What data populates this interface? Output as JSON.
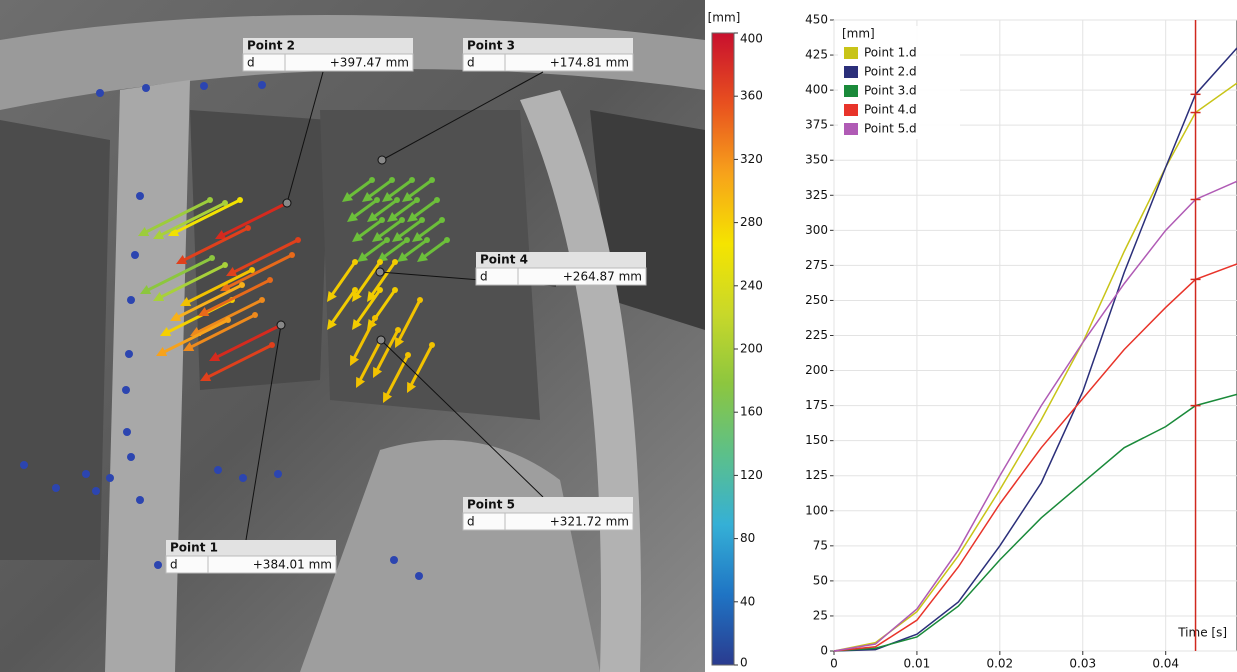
{
  "photo": {
    "callouts": [
      {
        "title": "Point 2",
        "quantity": "d",
        "value": "+397.47 mm"
      },
      {
        "title": "Point 3",
        "quantity": "d",
        "value": "+174.81 mm"
      },
      {
        "title": "Point 4",
        "quantity": "d",
        "value": "+264.87 mm"
      },
      {
        "title": "Point 5",
        "quantity": "d",
        "value": "+321.72 mm"
      },
      {
        "title": "Point 1",
        "quantity": "d",
        "value": "+384.01 mm"
      }
    ]
  },
  "chart_data": [
    {
      "type": "colorbar",
      "label": "[mm]",
      "ylim": [
        0,
        400
      ],
      "yticks": [
        0,
        40,
        80,
        120,
        160,
        200,
        240,
        280,
        320,
        360,
        400
      ],
      "colors": [
        "#2a3b8f",
        "#1f74c4",
        "#35b0d6",
        "#5cc08a",
        "#8cc63f",
        "#c8d82a",
        "#f5e400",
        "#f7a21b",
        "#e8501f",
        "#c8102e"
      ]
    },
    {
      "type": "line",
      "ylabel": "[mm]",
      "xlabel": "Time [s]",
      "x": [
        0,
        0.005,
        0.01,
        0.015,
        0.02,
        0.025,
        0.03,
        0.035,
        0.04,
        0.0436,
        0.0486
      ],
      "series": [
        {
          "name": "Point 1.d",
          "color": "#c8c418",
          "values": [
            0,
            6,
            28,
            68,
            115,
            165,
            220,
            285,
            345,
            384,
            405
          ]
        },
        {
          "name": "Point 2.d",
          "color": "#2b2f7a",
          "values": [
            0,
            1,
            12,
            35,
            75,
            120,
            185,
            270,
            345,
            397,
            430
          ]
        },
        {
          "name": "Point 3.d",
          "color": "#1a8a3a",
          "values": [
            0,
            2,
            10,
            32,
            65,
            95,
            120,
            145,
            160,
            175,
            183
          ]
        },
        {
          "name": "Point 4.d",
          "color": "#e8342a",
          "values": [
            0,
            3,
            22,
            60,
            105,
            145,
            180,
            215,
            245,
            265,
            276
          ]
        },
        {
          "name": "Point 5.d",
          "color": "#b05bb5",
          "values": [
            0,
            5,
            30,
            72,
            125,
            175,
            220,
            262,
            300,
            322,
            335
          ]
        }
      ],
      "xlim": [
        0,
        0.0486
      ],
      "xticks": [
        0,
        0.01,
        0.02,
        0.03,
        0.04
      ],
      "ylim": [
        0,
        450
      ],
      "yticks": [
        0,
        25,
        50,
        75,
        100,
        125,
        150,
        175,
        200,
        225,
        250,
        275,
        300,
        325,
        350,
        375,
        400,
        425,
        450
      ],
      "grid": true,
      "cursor": {
        "x": 0.0436,
        "color": "#d0281e"
      }
    }
  ]
}
